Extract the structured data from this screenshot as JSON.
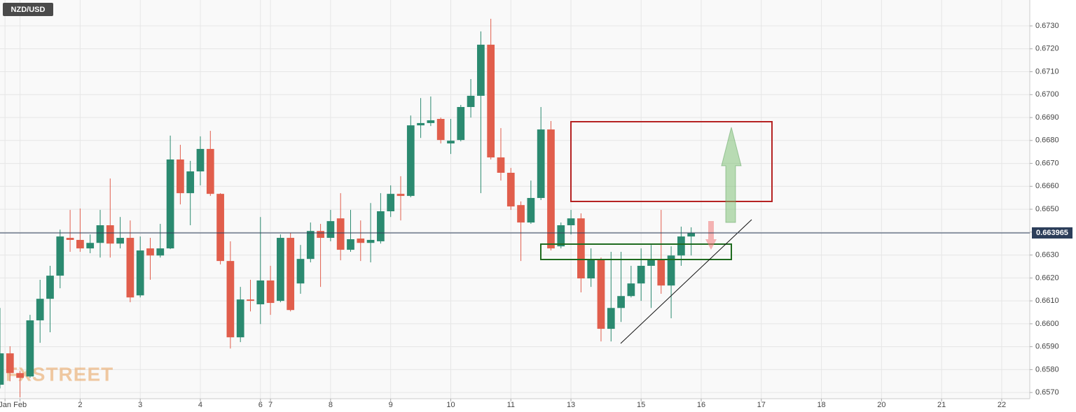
{
  "chart_data": {
    "type": "candlestick",
    "title": "NZD/USD",
    "watermark": "FXSTREET",
    "last_price": 0.663965,
    "x": [
      0,
      1,
      2,
      3,
      4,
      5,
      6,
      7,
      8,
      9,
      10,
      11,
      12,
      13,
      14,
      15,
      16,
      17,
      18,
      19,
      20,
      21,
      22,
      23,
      24,
      25,
      26,
      27,
      28,
      29,
      30,
      31,
      32,
      33,
      34,
      35,
      36,
      37,
      38,
      39,
      40,
      41,
      42,
      43,
      44,
      45,
      46,
      47,
      48,
      49,
      50,
      51,
      52,
      53,
      54,
      55,
      56,
      57,
      58,
      59,
      60,
      61,
      62,
      63,
      64,
      65,
      66,
      67,
      68,
      69
    ],
    "open": [
      0.65734,
      0.65871,
      0.65785,
      0.6577,
      0.66015,
      0.66109,
      0.6621,
      0.66375,
      0.66366,
      0.66329,
      0.66353,
      0.6643,
      0.6635,
      0.66375,
      0.66124,
      0.66329,
      0.66298,
      0.66329,
      0.66717,
      0.6657,
      0.66665,
      0.66763,
      0.66567,
      0.66274,
      0.65941,
      0.66106,
      0.66085,
      0.66189,
      0.661,
      0.66375,
      0.66176,
      0.66283,
      0.66405,
      0.66375,
      0.6646,
      0.66323,
      0.66372,
      0.66353,
      0.6636,
      0.66491,
      0.66567,
      0.66558,
      0.66866,
      0.66876,
      0.66894,
      0.66787,
      0.66802,
      0.66946,
      0.66995,
      0.67218,
      0.66726,
      0.66659,
      0.66518,
      0.66442,
      0.66549,
      0.66848,
      0.66338,
      0.6643,
      0.6646,
      0.66198,
      0.66283,
      0.65978,
      0.66069,
      0.66121,
      0.66176,
      0.66253,
      0.66283,
      0.66167,
      0.66298,
      0.66381
    ],
    "high": [
      0.66069,
      0.65902,
      0.65795,
      0.66039,
      0.66192,
      0.66253,
      0.66411,
      0.66497,
      0.66503,
      0.6639,
      0.66497,
      0.66634,
      0.66466,
      0.66451,
      0.66381,
      0.66375,
      0.66436,
      0.66821,
      0.66781,
      0.66711,
      0.66818,
      0.66842,
      0.6657,
      0.6636,
      0.66161,
      0.66192,
      0.66466,
      0.66253,
      0.6639,
      0.66396,
      0.66344,
      0.66442,
      0.66436,
      0.66497,
      0.6657,
      0.66497,
      0.66451,
      0.66527,
      0.6657,
      0.66604,
      0.66644,
      0.66909,
      0.66985,
      0.66992,
      0.669,
      0.66894,
      0.66955,
      0.67068,
      0.67276,
      0.67331,
      0.66854,
      0.6668,
      0.66534,
      0.66625,
      0.66946,
      0.66885,
      0.66442,
      0.66497,
      0.66482,
      0.66329,
      0.66289,
      0.66314,
      0.66314,
      0.66253,
      0.66329,
      0.66344,
      0.66497,
      0.66338,
      0.66424,
      0.66421
    ],
    "low": [
      0.65718,
      0.65749,
      0.65679,
      0.65764,
      0.65917,
      0.65963,
      0.66155,
      0.66314,
      0.66314,
      0.66308,
      0.66289,
      0.66289,
      0.66329,
      0.66094,
      0.66115,
      0.66192,
      0.66289,
      0.66326,
      0.66521,
      0.6643,
      0.66604,
      0.66558,
      0.66259,
      0.65892,
      0.6592,
      0.66054,
      0.65999,
      0.66039,
      0.66094,
      0.66054,
      0.66131,
      0.66268,
      0.66161,
      0.6636,
      0.66277,
      0.66314,
      0.66274,
      0.66268,
      0.6635,
      0.66466,
      0.66451,
      0.66552,
      0.66811,
      0.66863,
      0.66787,
      0.66741,
      0.66796,
      0.669,
      0.6657,
      0.66717,
      0.66625,
      0.66497,
      0.66274,
      0.66436,
      0.6654,
      0.6632,
      0.66329,
      0.6639,
      0.66137,
      0.66161,
      0.65923,
      0.65923,
      0.66008,
      0.66115,
      0.661,
      0.66069,
      0.66131,
      0.66024,
      0.66253,
      0.66298
    ],
    "close": [
      0.65871,
      0.65785,
      0.65764,
      0.66015,
      0.66109,
      0.6621,
      0.66381,
      0.66366,
      0.66329,
      0.66353,
      0.6643,
      0.6635,
      0.66375,
      0.66115,
      0.6632,
      0.66298,
      0.66329,
      0.66717,
      0.6657,
      0.66665,
      0.66763,
      0.66567,
      0.66274,
      0.65941,
      0.66106,
      0.661,
      0.66189,
      0.66091,
      0.66375,
      0.6606,
      0.66283,
      0.66405,
      0.66375,
      0.66448,
      0.66323,
      0.66369,
      0.66353,
      0.66366,
      0.66491,
      0.66567,
      0.66558,
      0.66866,
      0.66876,
      0.66888,
      0.66802,
      0.66799,
      0.66946,
      0.66995,
      0.67218,
      0.66726,
      0.66659,
      0.66512,
      0.66442,
      0.66549,
      0.66848,
      0.66329,
      0.6643,
      0.6646,
      0.66198,
      0.66283,
      0.65978,
      0.66069,
      0.66121,
      0.66176,
      0.66253,
      0.66283,
      0.66167,
      0.66298,
      0.66381,
      0.66396
    ],
    "up_color": "#2b8a70",
    "down_color": "#e15e4c",
    "xlim": [
      0,
      102.8
    ],
    "xticks": [
      {
        "value": 0.5,
        "label": "Jan"
      },
      {
        "value": 2,
        "label": "Feb"
      },
      {
        "value": 8,
        "label": "2"
      },
      {
        "value": 14,
        "label": "3"
      },
      {
        "value": 20,
        "label": "4"
      },
      {
        "value": 26,
        "label": "6"
      },
      {
        "value": 27,
        "label": "7"
      },
      {
        "value": 33,
        "label": "8"
      },
      {
        "value": 39,
        "label": "9"
      },
      {
        "value": 45,
        "label": "10"
      },
      {
        "value": 51,
        "label": "11"
      },
      {
        "value": 57,
        "label": "13"
      },
      {
        "value": 64,
        "label": "15"
      },
      {
        "value": 70,
        "label": "16"
      },
      {
        "value": 76,
        "label": "17"
      },
      {
        "value": 82,
        "label": "18"
      },
      {
        "value": 88,
        "label": "20"
      },
      {
        "value": 94,
        "label": "21"
      },
      {
        "value": 100,
        "label": "22"
      }
    ],
    "ylim": [
      0.65673,
      0.67413
    ],
    "yticks": [
      {
        "value": 0.657,
        "label": "0.6570"
      },
      {
        "value": 0.658,
        "label": "0.6580"
      },
      {
        "value": 0.659,
        "label": "0.6590"
      },
      {
        "value": 0.66,
        "label": "0.6600"
      },
      {
        "value": 0.661,
        "label": "0.6610"
      },
      {
        "value": 0.662,
        "label": "0.6620"
      },
      {
        "value": 0.663,
        "label": "0.6630"
      },
      {
        "value": 0.664,
        "label": "0.6640"
      },
      {
        "value": 0.665,
        "label": "0.6650"
      },
      {
        "value": 0.666,
        "label": "0.6660"
      },
      {
        "value": 0.667,
        "label": "0.6670"
      },
      {
        "value": 0.668,
        "label": "0.6680"
      },
      {
        "value": 0.669,
        "label": "0.6690"
      },
      {
        "value": 0.67,
        "label": "0.6700"
      },
      {
        "value": 0.671,
        "label": "0.6710"
      },
      {
        "value": 0.672,
        "label": "0.6720"
      },
      {
        "value": 0.673,
        "label": "0.6730"
      }
    ],
    "grid": true
  }
}
